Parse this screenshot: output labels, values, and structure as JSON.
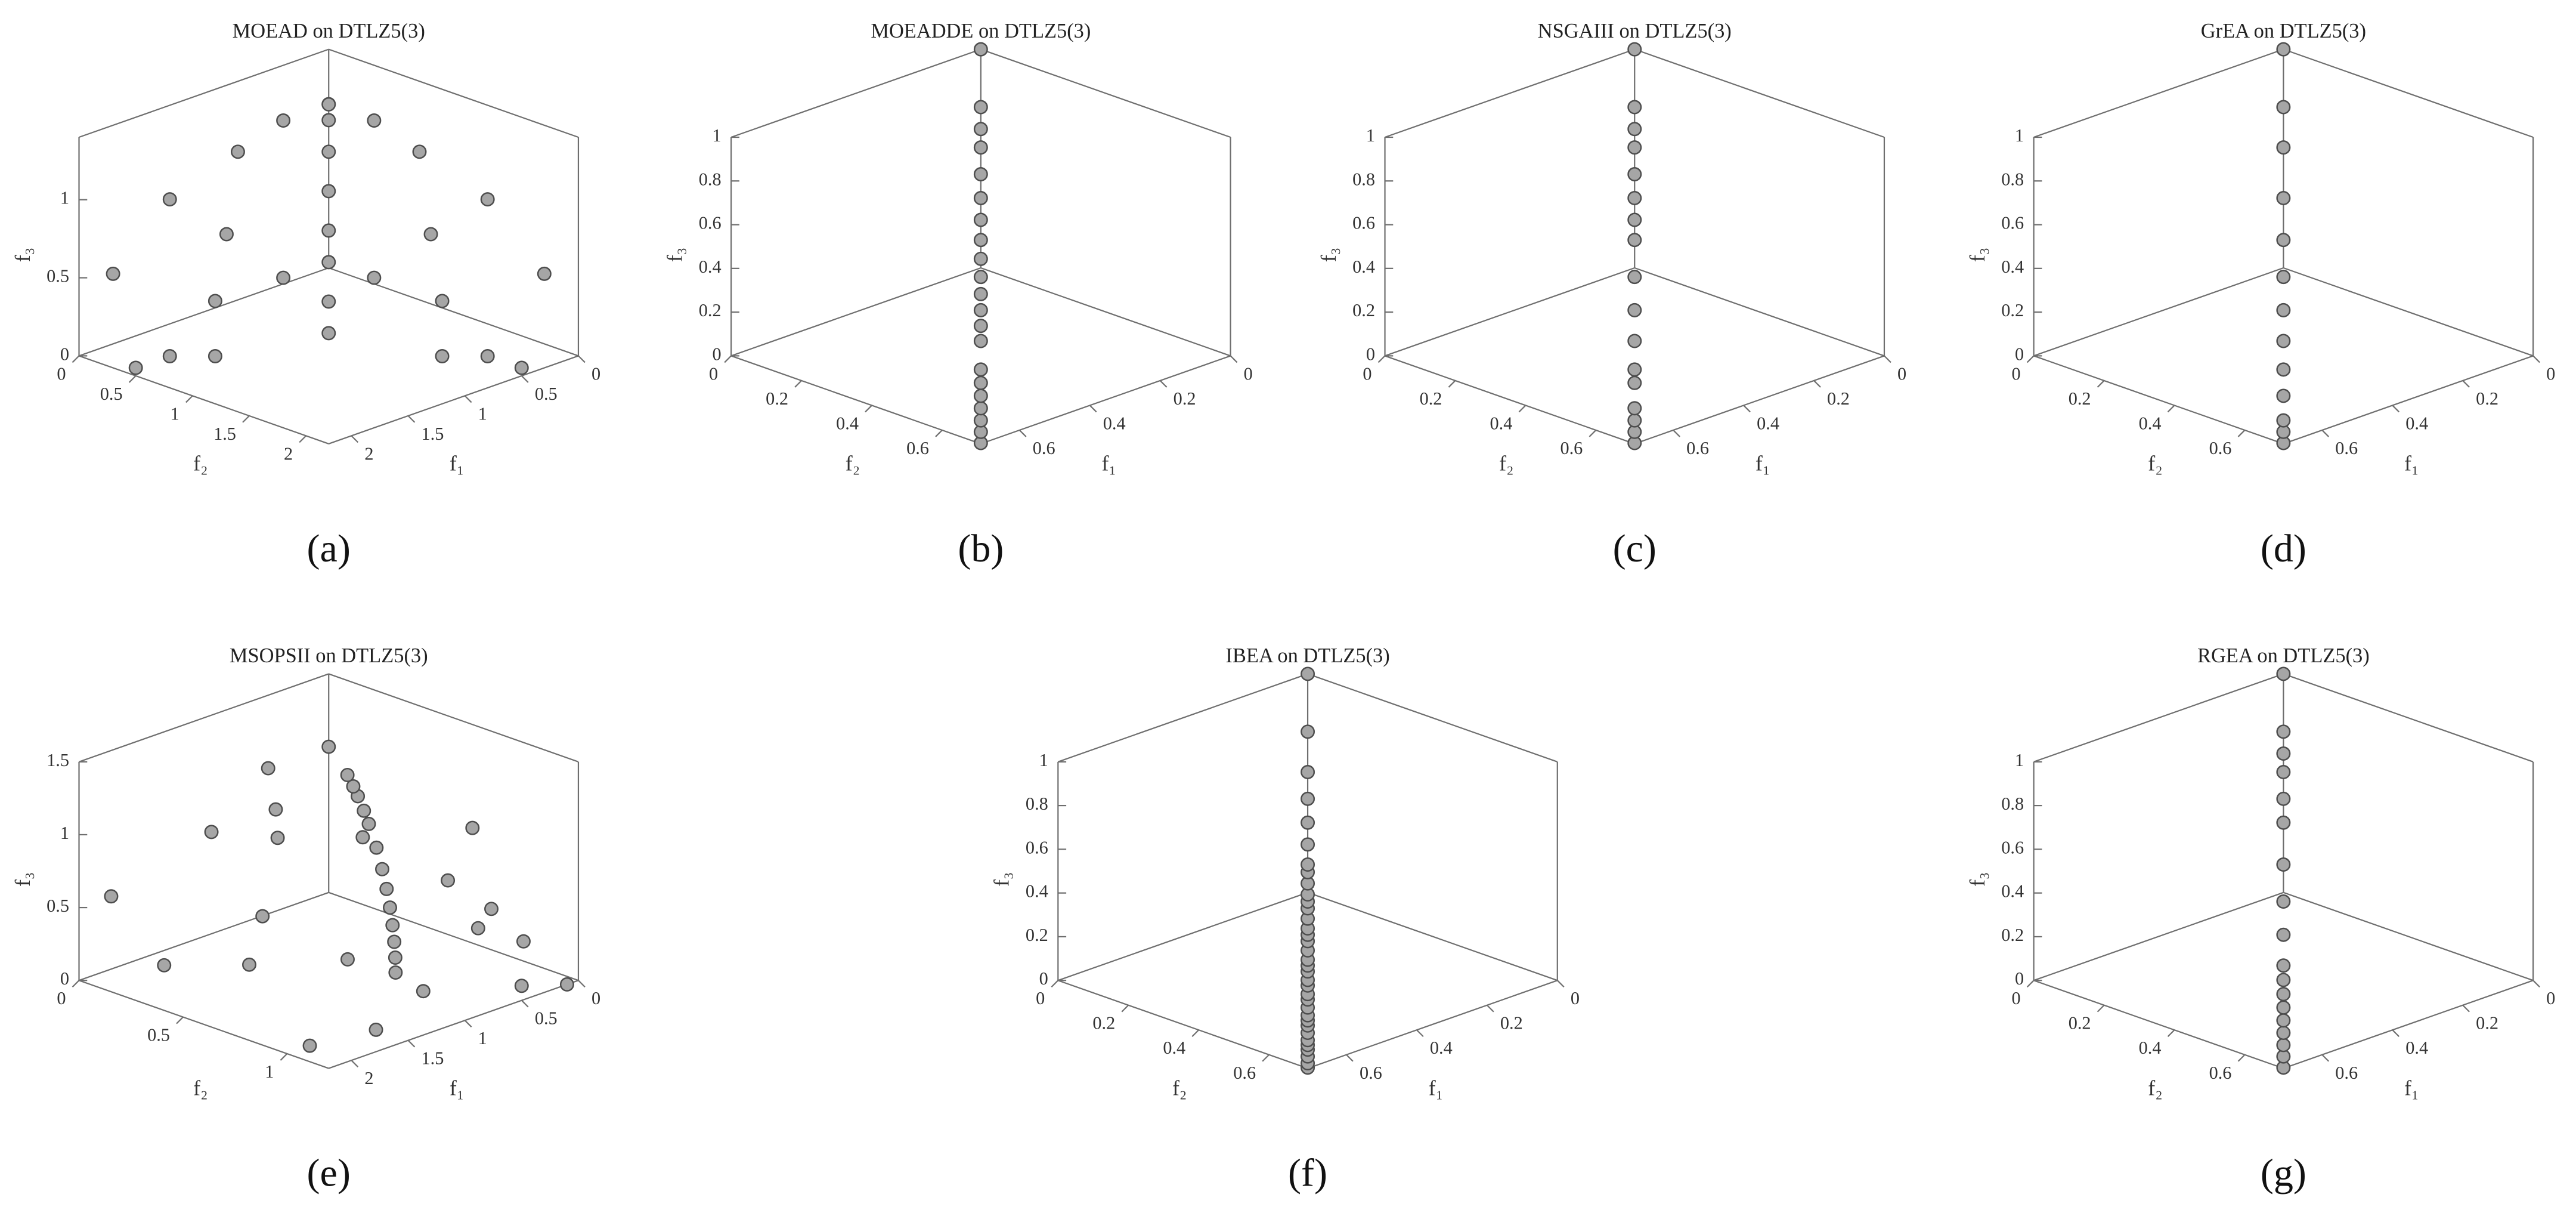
{
  "chart_data": [
    {
      "type": "scatter3d",
      "title": "MOEAD on DTLZ5(3)",
      "caption": "(a)",
      "xlabel": "f₁",
      "ylabel": "f₂",
      "zlabel": "f₃",
      "xlim": [
        0,
        2.2
      ],
      "ylim": [
        0,
        2.2
      ],
      "zlim": [
        0,
        1.4
      ],
      "xticks": [
        0,
        0.5,
        1,
        1.5,
        2
      ],
      "yticks": [
        0,
        0.5,
        1,
        1.5,
        2
      ],
      "zticks": [
        0,
        0.5,
        1
      ],
      "color": "#a6a6a6",
      "x": [
        0.1,
        0.2,
        0.3,
        0.5,
        0.7,
        0.9,
        1.1,
        1.3,
        1.5,
        0.1,
        0.9,
        0.2,
        1.6,
        0.1,
        2.0,
        0.3,
        1.2,
        0.5,
        1.5,
        0.6,
        2.0,
        0.3,
        0.7,
        0.8,
        1.8,
        0.9,
        1.3,
        0.4,
        2.1
      ],
      "y": [
        0.1,
        0.2,
        0.3,
        0.5,
        0.7,
        0.9,
        1.1,
        1.3,
        1.5,
        0.9,
        0.1,
        1.6,
        0.2,
        2.0,
        0.1,
        1.2,
        0.3,
        1.5,
        0.5,
        2.0,
        0.6,
        0.7,
        0.3,
        1.8,
        0.8,
        1.3,
        0.9,
        2.1,
        0.4
      ],
      "z": [
        1.1,
        1.15,
        1.1,
        1.0,
        0.85,
        0.7,
        0.6,
        0.45,
        0.35,
        1.0,
        1.0,
        0.9,
        0.9,
        0.5,
        0.5,
        0.6,
        0.6,
        0.3,
        0.3,
        0.1,
        0.1,
        1.2,
        1.2,
        0.1,
        0.1,
        0.5,
        0.5,
        0,
        0
      ]
    },
    {
      "type": "scatter3d",
      "title": "MOEADDE on DTLZ5(3)",
      "caption": "(b)",
      "xlabel": "f₁",
      "ylabel": "f₂",
      "zlabel": "f₃",
      "xlim": [
        0,
        0.71
      ],
      "ylim": [
        0,
        0.71
      ],
      "zlim": [
        0,
        1
      ],
      "xticks": [
        0,
        0.2,
        0.4,
        0.6
      ],
      "yticks": [
        0,
        0.2,
        0.4,
        0.6
      ],
      "zticks": [
        0,
        0.2,
        0.4,
        0.6,
        0.8,
        1
      ],
      "color": "#a6a6a6",
      "x": [
        0.707,
        0.706,
        0.704,
        0.699,
        0.693,
        0.685,
        0.675,
        0.648,
        0.631,
        0.612,
        0.591,
        0.566,
        0.537,
        0.505,
        0.468,
        0.424,
        0.372,
        0.308,
        0.26,
        0.198,
        0
      ],
      "y": [
        0.707,
        0.706,
        0.704,
        0.699,
        0.693,
        0.685,
        0.675,
        0.648,
        0.631,
        0.612,
        0.591,
        0.566,
        0.537,
        0.505,
        0.468,
        0.424,
        0.372,
        0.308,
        0.26,
        0.198,
        0
      ],
      "z": [
        0,
        0.05,
        0.1,
        0.15,
        0.2,
        0.25,
        0.3,
        0.4,
        0.45,
        0.5,
        0.55,
        0.6,
        0.65,
        0.7,
        0.75,
        0.8,
        0.85,
        0.9,
        0.93,
        0.96,
        1
      ]
    },
    {
      "type": "scatter3d",
      "title": "NSGAIII on DTLZ5(3)",
      "caption": "(c)",
      "xlabel": "f₁",
      "ylabel": "f₂",
      "zlabel": "f₃",
      "xlim": [
        0,
        0.71
      ],
      "ylim": [
        0,
        0.71
      ],
      "zlim": [
        0,
        1
      ],
      "xticks": [
        0,
        0.2,
        0.4,
        0.6
      ],
      "yticks": [
        0,
        0.2,
        0.4,
        0.6
      ],
      "zticks": [
        0,
        0.2,
        0.4,
        0.6,
        0.8,
        1
      ],
      "color": "#a6a6a6",
      "x": [
        0.707,
        0.706,
        0.704,
        0.699,
        0.685,
        0.675,
        0.648,
        0.612,
        0.566,
        0.505,
        0.468,
        0.424,
        0.372,
        0.308,
        0.26,
        0.198,
        0
      ],
      "y": [
        0.707,
        0.706,
        0.704,
        0.699,
        0.685,
        0.675,
        0.648,
        0.612,
        0.566,
        0.505,
        0.468,
        0.424,
        0.372,
        0.308,
        0.26,
        0.198,
        0
      ],
      "z": [
        0,
        0.05,
        0.1,
        0.15,
        0.25,
        0.3,
        0.4,
        0.5,
        0.6,
        0.7,
        0.75,
        0.8,
        0.85,
        0.9,
        0.93,
        0.96,
        1
      ]
    },
    {
      "type": "scatter3d",
      "title": "GrEA on DTLZ5(3)",
      "caption": "(d)",
      "xlabel": "f₁",
      "ylabel": "f₂",
      "zlabel": "f₃",
      "xlim": [
        0,
        0.71
      ],
      "ylim": [
        0,
        0.71
      ],
      "zlim": [
        0,
        1
      ],
      "xticks": [
        0,
        0.2,
        0.4,
        0.6
      ],
      "yticks": [
        0,
        0.2,
        0.4,
        0.6
      ],
      "zticks": [
        0,
        0.2,
        0.4,
        0.6,
        0.8,
        1
      ],
      "color": "#a6a6a6",
      "x": [
        0.707,
        0.706,
        0.704,
        0.693,
        0.675,
        0.648,
        0.612,
        0.566,
        0.505,
        0.424,
        0.308,
        0.198,
        0
      ],
      "y": [
        0.707,
        0.706,
        0.704,
        0.693,
        0.675,
        0.648,
        0.612,
        0.566,
        0.505,
        0.424,
        0.308,
        0.198,
        0
      ],
      "z": [
        0,
        0.05,
        0.1,
        0.2,
        0.3,
        0.4,
        0.5,
        0.6,
        0.7,
        0.8,
        0.9,
        0.96,
        1
      ]
    },
    {
      "type": "scatter3d",
      "title": "MSOPSII on DTLZ5(3)",
      "caption": "(e)",
      "xlabel": "f₁",
      "ylabel": "f₂",
      "zlabel": "f₃",
      "xlim": [
        0,
        2.2
      ],
      "ylim": [
        0,
        1.2
      ],
      "zlim": [
        0,
        1.5
      ],
      "xticks": [
        0,
        0.5,
        1,
        1.5,
        2
      ],
      "yticks": [
        0,
        0.5,
        1
      ],
      "zticks": [
        0,
        0.5,
        1,
        1.5
      ],
      "color": "#a6a6a6",
      "x": [
        0.707,
        0.704,
        0.693,
        0.675,
        0.648,
        0.612,
        0.566,
        0.505,
        0.424,
        0.372,
        0.308,
        0.26,
        0.198,
        0,
        1.2,
        0.8,
        1.0,
        1.5,
        0.6,
        0.4,
        1.3,
        1.8,
        2.0,
        0.3,
        0.5,
        1.0,
        1.6,
        2.0,
        0.9,
        1.4,
        0.2,
        0.7,
        2.1,
        0.1
      ],
      "y": [
        0.707,
        0.704,
        0.693,
        0.675,
        0.648,
        0.612,
        0.566,
        0.505,
        0.424,
        0.372,
        0.308,
        0.26,
        0.198,
        0,
        0.4,
        0.6,
        0.3,
        0.5,
        0.9,
        1.0,
        0.8,
        0.6,
        0.3,
        1.1,
        1.2,
        1.0,
        1.1,
        1.0,
        0.2,
        0.2,
        0.8,
        1.1,
        0.1,
        1.2
      ],
      "z": [
        0,
        0.1,
        0.2,
        0.3,
        0.4,
        0.5,
        0.6,
        0.7,
        0.8,
        0.85,
        0.9,
        0.93,
        0.96,
        1,
        1.1,
        0.9,
        0.8,
        0.5,
        0.7,
        0.5,
        0.3,
        0.3,
        0.2,
        0.3,
        0.1,
        0.1,
        0.05,
        0,
        1.2,
        0.9,
        0.9,
        0.5,
        0.6,
        0
      ]
    },
    {
      "type": "scatter3d",
      "title": "IBEA on DTLZ5(3)",
      "caption": "(f)",
      "xlabel": "f₁",
      "ylabel": "f₂",
      "zlabel": "f₃",
      "xlim": [
        0,
        0.71
      ],
      "ylim": [
        0,
        0.71
      ],
      "zlim": [
        0,
        1
      ],
      "xticks": [
        0,
        0.2,
        0.4,
        0.6
      ],
      "yticks": [
        0,
        0.2,
        0.4,
        0.6
      ],
      "zticks": [
        0,
        0.2,
        0.4,
        0.6,
        0.8,
        1
      ],
      "color": "#a6a6a6",
      "x": [
        0.707,
        0.707,
        0.706,
        0.705,
        0.704,
        0.702,
        0.699,
        0.696,
        0.693,
        0.69,
        0.685,
        0.679,
        0.675,
        0.667,
        0.662,
        0.654,
        0.648,
        0.642,
        0.631,
        0.62,
        0.612,
        0.604,
        0.591,
        0.576,
        0.566,
        0.555,
        0.537,
        0.518,
        0.505,
        0.468,
        0.424,
        0.372,
        0.308,
        0.198,
        0
      ],
      "y": [
        0.707,
        0.707,
        0.706,
        0.705,
        0.704,
        0.702,
        0.699,
        0.696,
        0.693,
        0.69,
        0.685,
        0.679,
        0.675,
        0.667,
        0.662,
        0.654,
        0.648,
        0.642,
        0.631,
        0.62,
        0.612,
        0.604,
        0.591,
        0.576,
        0.566,
        0.555,
        0.537,
        0.518,
        0.505,
        0.468,
        0.424,
        0.372,
        0.308,
        0.198,
        0
      ],
      "z": [
        0,
        0.02,
        0.05,
        0.08,
        0.1,
        0.12,
        0.15,
        0.18,
        0.2,
        0.22,
        0.25,
        0.28,
        0.3,
        0.33,
        0.35,
        0.38,
        0.4,
        0.42,
        0.45,
        0.48,
        0.5,
        0.52,
        0.55,
        0.58,
        0.6,
        0.62,
        0.65,
        0.68,
        0.7,
        0.75,
        0.8,
        0.85,
        0.9,
        0.96,
        1
      ]
    },
    {
      "type": "scatter3d",
      "title": "RGEA on DTLZ5(3)",
      "caption": "(g)",
      "xlabel": "f₁",
      "ylabel": "f₂",
      "zlabel": "f₃",
      "xlim": [
        0,
        0.71
      ],
      "ylim": [
        0,
        0.71
      ],
      "zlim": [
        0,
        1
      ],
      "xticks": [
        0,
        0.2,
        0.4,
        0.6
      ],
      "yticks": [
        0,
        0.2,
        0.4,
        0.6
      ],
      "zticks": [
        0,
        0.2,
        0.4,
        0.6,
        0.8,
        1
      ],
      "color": "#a6a6a6",
      "x": [
        0.707,
        0.706,
        0.704,
        0.699,
        0.693,
        0.685,
        0.675,
        0.662,
        0.648,
        0.612,
        0.566,
        0.505,
        0.424,
        0.372,
        0.308,
        0.26,
        0.198,
        0
      ],
      "y": [
        0.707,
        0.706,
        0.704,
        0.699,
        0.693,
        0.685,
        0.675,
        0.662,
        0.648,
        0.612,
        0.566,
        0.505,
        0.424,
        0.372,
        0.308,
        0.26,
        0.198,
        0
      ],
      "z": [
        0,
        0.05,
        0.1,
        0.15,
        0.2,
        0.25,
        0.3,
        0.35,
        0.4,
        0.5,
        0.6,
        0.7,
        0.8,
        0.85,
        0.9,
        0.93,
        0.96,
        1
      ]
    }
  ]
}
